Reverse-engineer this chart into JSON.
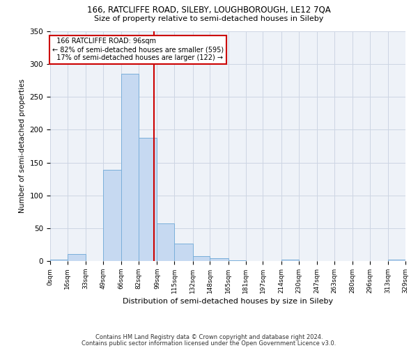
{
  "title1": "166, RATCLIFFE ROAD, SILEBY, LOUGHBOROUGH, LE12 7QA",
  "title2": "Size of property relative to semi-detached houses in Sileby",
  "xlabel": "Distribution of semi-detached houses by size in Sileby",
  "ylabel": "Number of semi-detached properties",
  "property_size": 96,
  "property_label": "166 RATCLIFFE ROAD: 96sqm",
  "pct_smaller": 82,
  "count_smaller": 595,
  "pct_larger": 17,
  "count_larger": 122,
  "bin_edges": [
    0,
    16,
    33,
    49,
    66,
    82,
    99,
    115,
    132,
    148,
    165,
    181,
    197,
    214,
    230,
    247,
    263,
    280,
    296,
    313,
    329
  ],
  "bar_heights": [
    2,
    11,
    0,
    139,
    285,
    188,
    57,
    27,
    7,
    4,
    1,
    0,
    0,
    2,
    0,
    0,
    0,
    0,
    0,
    2
  ],
  "bar_color": "#c6d9f1",
  "bar_edge_color": "#7aafda",
  "vline_x": 96,
  "vline_color": "#cc0000",
  "annotation_box_color": "#cc0000",
  "grid_color": "#ccd5e3",
  "bg_color": "#eef2f8",
  "footer1": "Contains HM Land Registry data © Crown copyright and database right 2024.",
  "footer2": "Contains public sector information licensed under the Open Government Licence v3.0.",
  "ylim": [
    0,
    350
  ],
  "yticks": [
    0,
    50,
    100,
    150,
    200,
    250,
    300,
    350
  ]
}
